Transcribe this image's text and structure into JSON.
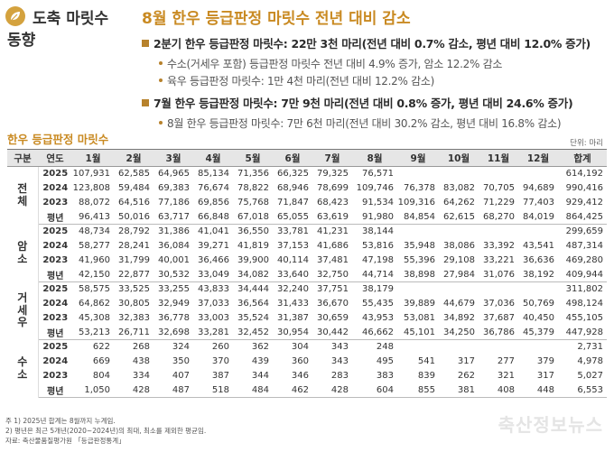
{
  "header": {
    "tag_line1": "도축 마릿수",
    "tag_line2": "동향",
    "title": "8월 한우 등급판정 마릿수 전년 대비 감소",
    "bullets": [
      "2분기 한우 등급판정 마릿수: 22만 3천 마리(전년 대비 0.7% 감소, 평년 대비 12.0% 증가)",
      "수소(거세우 포함) 등급판정 마릿수 전년 대비 4.9% 증가, 암소 12.2% 감소",
      "육우 등급판정 마릿수: 1만 4천 마리(전년 대비 12.2% 감소)",
      "7월 한우 등급판정 마릿수: 7만 9천 마리(전년 대비 0.8% 증가, 평년 대비 24.6% 증가)",
      "8월 한우 등급판정 마릿수: 7만 6천 마리(전년 대비 30.2% 감소, 평년 대비 16.8% 감소)"
    ]
  },
  "table": {
    "title": "한우 등급판정 마릿수",
    "unit": "단위: 마리",
    "headers": [
      "구분",
      "연도",
      "1월",
      "2월",
      "3월",
      "4월",
      "5월",
      "6월",
      "7월",
      "8월",
      "9월",
      "10월",
      "11월",
      "12월",
      "합계"
    ],
    "groups": [
      {
        "name": "전체",
        "rows": [
          [
            "2025",
            "107,931",
            "62,585",
            "64,965",
            "85,134",
            "71,356",
            "66,325",
            "79,325",
            "76,571",
            "",
            "",
            "",
            "",
            "614,192"
          ],
          [
            "2024",
            "123,808",
            "59,484",
            "69,383",
            "76,674",
            "78,822",
            "68,946",
            "78,699",
            "109,746",
            "76,378",
            "83,082",
            "70,705",
            "94,689",
            "990,416"
          ],
          [
            "2023",
            "88,072",
            "64,516",
            "77,186",
            "69,856",
            "75,768",
            "71,847",
            "68,423",
            "91,534",
            "109,316",
            "64,262",
            "71,229",
            "77,403",
            "929,412"
          ],
          [
            "평년",
            "96,413",
            "50,016",
            "63,717",
            "66,848",
            "67,018",
            "65,055",
            "63,619",
            "91,980",
            "84,854",
            "62,615",
            "68,270",
            "84,019",
            "864,425"
          ]
        ]
      },
      {
        "name": "암소",
        "rows": [
          [
            "2025",
            "48,734",
            "28,792",
            "31,386",
            "41,041",
            "36,550",
            "33,781",
            "41,231",
            "38,144",
            "",
            "",
            "",
            "",
            "299,659"
          ],
          [
            "2024",
            "58,277",
            "28,241",
            "36,084",
            "39,271",
            "41,819",
            "37,153",
            "41,686",
            "53,816",
            "35,948",
            "38,086",
            "33,392",
            "43,541",
            "487,314"
          ],
          [
            "2023",
            "41,960",
            "31,799",
            "40,001",
            "36,466",
            "39,900",
            "40,114",
            "37,481",
            "47,198",
            "55,396",
            "29,108",
            "33,221",
            "36,636",
            "469,280"
          ],
          [
            "평년",
            "42,150",
            "22,877",
            "30,532",
            "33,049",
            "34,082",
            "33,640",
            "32,750",
            "44,714",
            "38,898",
            "27,984",
            "31,076",
            "38,192",
            "409,944"
          ]
        ]
      },
      {
        "name": "거세우",
        "rows": [
          [
            "2025",
            "58,575",
            "33,525",
            "33,255",
            "43,833",
            "34,444",
            "32,240",
            "37,751",
            "38,179",
            "",
            "",
            "",
            "",
            "311,802"
          ],
          [
            "2024",
            "64,862",
            "30,805",
            "32,949",
            "37,033",
            "36,564",
            "31,433",
            "36,670",
            "55,435",
            "39,889",
            "44,679",
            "37,036",
            "50,769",
            "498,124"
          ],
          [
            "2023",
            "45,308",
            "32,383",
            "36,778",
            "33,003",
            "35,524",
            "31,387",
            "30,659",
            "43,953",
            "53,081",
            "34,892",
            "37,687",
            "40,450",
            "455,105"
          ],
          [
            "평년",
            "53,213",
            "26,711",
            "32,698",
            "33,281",
            "32,452",
            "30,954",
            "30,442",
            "46,662",
            "45,101",
            "34,250",
            "36,786",
            "45,379",
            "447,928"
          ]
        ]
      },
      {
        "name": "수소",
        "rows": [
          [
            "2025",
            "622",
            "268",
            "324",
            "260",
            "362",
            "304",
            "343",
            "248",
            "",
            "",
            "",
            "",
            "2,731"
          ],
          [
            "2024",
            "669",
            "438",
            "350",
            "370",
            "439",
            "360",
            "343",
            "495",
            "541",
            "317",
            "277",
            "379",
            "4,978"
          ],
          [
            "2023",
            "804",
            "334",
            "407",
            "387",
            "344",
            "346",
            "283",
            "383",
            "839",
            "262",
            "321",
            "317",
            "5,027"
          ],
          [
            "평년",
            "1,050",
            "428",
            "487",
            "518",
            "484",
            "462",
            "428",
            "604",
            "855",
            "381",
            "408",
            "448",
            "6,553"
          ]
        ]
      }
    ]
  },
  "notes": [
    "주   1) 2025년 합계는 8월까지 누계임.",
    "      2) 평년은 최근 5개년(2020~2024년)의 최대, 최소를 제외한 평균임.",
    "자료: 축산물품질평가원 「등급판정통계」"
  ],
  "watermark": "축산정보뉴스"
}
